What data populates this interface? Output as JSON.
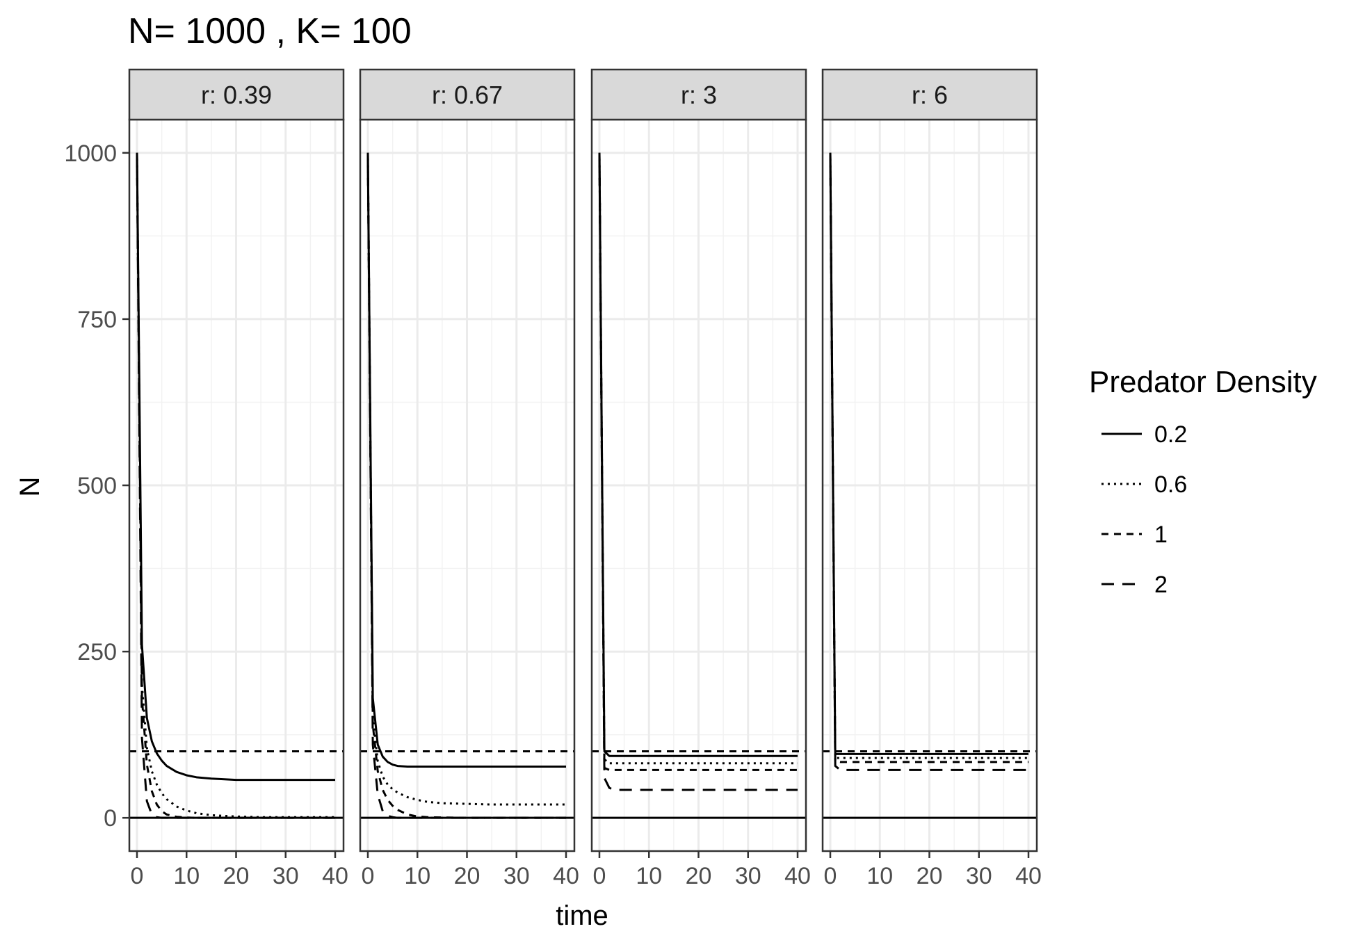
{
  "chart_data": {
    "type": "line",
    "title": "N= 1000 , K= 100",
    "xlabel": "time",
    "ylabel": "N",
    "xlim": [
      -1.8,
      41.8
    ],
    "ylim": [
      -50,
      1050
    ],
    "x_ticks": [
      0,
      10,
      20,
      30,
      40
    ],
    "x_minor_ticks": [
      5,
      15,
      25,
      35
    ],
    "y_ticks": [
      0,
      250,
      500,
      750,
      1000
    ],
    "y_minor_ticks": [
      125,
      375,
      625,
      875
    ],
    "grid": true,
    "theme": "bw",
    "legend": {
      "title": "Predator Density",
      "position": "right",
      "entries": [
        {
          "label": "0.2",
          "dash": "solid"
        },
        {
          "label": "0.6",
          "dash": "dotted"
        },
        {
          "label": "1",
          "dash": "dashed"
        },
        {
          "label": "2",
          "dash": "longdash"
        }
      ]
    },
    "series_style": {
      "color": "#000000"
    },
    "reference_lines": [
      {
        "name": "K",
        "y": 100,
        "dash": "dashed"
      },
      {
        "name": "zero",
        "y": 0,
        "dash": "solid"
      }
    ],
    "panels": [
      {
        "strip": "r: 0.39",
        "series": [
          {
            "name": "0.2",
            "x": [
              0,
              1,
              2,
              3,
              4,
              5,
              6,
              8,
              10,
              12,
              15,
              20,
              25,
              30,
              35,
              40
            ],
            "y": [
              1000,
              260,
              150,
              115,
              97,
              86,
              78,
              69,
              64,
              61,
              59,
              57,
              57,
              57,
              57,
              57
            ]
          },
          {
            "name": "0.6",
            "x": [
              0,
              1,
              2,
              3,
              4,
              5,
              6,
              8,
              10,
              12,
              15,
              20,
              25,
              30,
              35,
              40
            ],
            "y": [
              1000,
              200,
              105,
              70,
              50,
              37,
              28,
              17,
              11,
              7,
              4,
              2,
              1,
              1,
              1,
              1
            ]
          },
          {
            "name": "1",
            "x": [
              0,
              1,
              2,
              3,
              4,
              5,
              6,
              8,
              10,
              12,
              15,
              20,
              25,
              30,
              35,
              40
            ],
            "y": [
              1000,
              180,
              80,
              40,
              20,
              10,
              5,
              1.5,
              0.5,
              0,
              0,
              0,
              0,
              0,
              0,
              0
            ]
          },
          {
            "name": "2",
            "x": [
              0,
              1,
              2,
              3,
              4,
              5,
              6,
              8,
              10,
              12,
              15,
              20,
              25,
              30,
              35,
              40
            ],
            "y": [
              1000,
              120,
              25,
              5,
              1,
              0,
              0,
              0,
              0,
              0,
              0,
              0,
              0,
              0,
              0,
              0
            ]
          }
        ]
      },
      {
        "strip": "r: 0.67",
        "series": [
          {
            "name": "0.2",
            "x": [
              0,
              1,
              2,
              3,
              4,
              5,
              6,
              8,
              10,
              12,
              15,
              20,
              25,
              30,
              35,
              40
            ],
            "y": [
              1000,
              180,
              110,
              92,
              84,
              80,
              78,
              77,
              77,
              77,
              77,
              77,
              77,
              77,
              77,
              77
            ]
          },
          {
            "name": "0.6",
            "x": [
              0,
              1,
              2,
              3,
              4,
              5,
              6,
              8,
              10,
              12,
              15,
              20,
              25,
              30,
              35,
              40
            ],
            "y": [
              1000,
              150,
              85,
              62,
              50,
              43,
              38,
              31,
              27,
              24,
              22,
              21,
              20,
              20,
              20,
              20
            ]
          },
          {
            "name": "1",
            "x": [
              0,
              1,
              2,
              3,
              4,
              5,
              6,
              8,
              10,
              12,
              15,
              20,
              25,
              30,
              35,
              40
            ],
            "y": [
              1000,
              140,
              70,
              42,
              27,
              18,
              12,
              5,
              2,
              1,
              0.5,
              0,
              0,
              0,
              0,
              0
            ]
          },
          {
            "name": "2",
            "x": [
              0,
              1,
              2,
              3,
              4,
              5,
              6,
              8,
              10,
              12,
              15,
              20,
              25,
              30,
              35,
              40
            ],
            "y": [
              1000,
              110,
              35,
              10,
              3,
              1,
              0,
              0,
              0,
              0,
              0,
              0,
              0,
              0,
              0,
              0
            ]
          }
        ]
      },
      {
        "strip": "r: 3",
        "series": [
          {
            "name": "0.2",
            "x": [
              0,
              1,
              2,
              3,
              4,
              5,
              10,
              20,
              30,
              40
            ],
            "y": [
              1000,
              100,
              93,
              93,
              93,
              93,
              93,
              93,
              93,
              93
            ]
          },
          {
            "name": "0.6",
            "x": [
              0,
              1,
              2,
              3,
              4,
              5,
              10,
              20,
              30,
              40
            ],
            "y": [
              1000,
              88,
              82,
              82,
              82,
              82,
              82,
              82,
              82,
              82
            ]
          },
          {
            "name": "1",
            "x": [
              0,
              1,
              2,
              3,
              4,
              5,
              10,
              20,
              30,
              40
            ],
            "y": [
              1000,
              75,
              72,
              72,
              72,
              72,
              72,
              72,
              72,
              72
            ]
          },
          {
            "name": "2",
            "x": [
              0,
              1,
              2,
              3,
              4,
              5,
              10,
              20,
              30,
              40
            ],
            "y": [
              1000,
              60,
              45,
              42,
              42,
              42,
              42,
              42,
              42,
              42
            ]
          }
        ]
      },
      {
        "strip": "r: 6",
        "series": [
          {
            "name": "0.2",
            "x": [
              0,
              1,
              2,
              3,
              5,
              10,
              20,
              30,
              40
            ],
            "y": [
              1000,
              96,
              96,
              96,
              96,
              96,
              96,
              96,
              96
            ]
          },
          {
            "name": "0.6",
            "x": [
              0,
              1,
              2,
              3,
              5,
              10,
              20,
              30,
              40
            ],
            "y": [
              1000,
              90,
              90,
              90,
              90,
              90,
              90,
              90,
              90
            ]
          },
          {
            "name": "1",
            "x": [
              0,
              1,
              2,
              3,
              5,
              10,
              20,
              30,
              40
            ],
            "y": [
              1000,
              85,
              84,
              84,
              84,
              84,
              84,
              84,
              84
            ]
          },
          {
            "name": "2",
            "x": [
              0,
              1,
              2,
              3,
              5,
              10,
              20,
              30,
              40
            ],
            "y": [
              1000,
              78,
              72,
              72,
              72,
              72,
              72,
              72,
              72
            ]
          }
        ]
      }
    ]
  }
}
